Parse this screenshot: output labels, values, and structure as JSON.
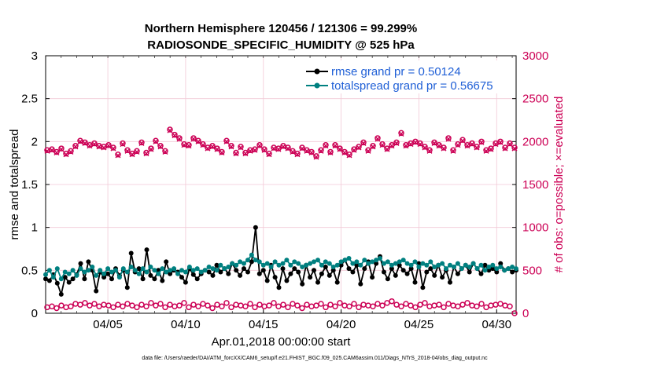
{
  "chart_data": {
    "type": "line",
    "title_line1": "Northern Hemisphere 120456 / 121306 = 99.299%",
    "title_line2": "RADIOSONDE_SPECIFIC_HUMIDITY @ 525 hPa",
    "ylabel": "rmse and totalspread",
    "y2label": "# of obs: o=possible; ×=evaluated",
    "xlabel": "Apr.01,2018 00:00:00 start",
    "footer": "data file: /Users/raeder/DAI/ATM_forcXX/CAM6_setup/f.e21.FHIST_BGC.f09_025.CAM6assim.011/Diags_NTrS_2018-04/obs_diag_output.nc",
    "ylim": [
      0,
      3
    ],
    "y2lim": [
      0,
      3000
    ],
    "xlim": [
      1.0,
      31.25
    ],
    "yticks": [
      "0",
      "0.5",
      "1",
      "1.5",
      "2",
      "2.5",
      "3"
    ],
    "y2ticks": [
      "0",
      "500",
      "1000",
      "1500",
      "2000",
      "2500",
      "3000"
    ],
    "xticks": [
      {
        "x": 5,
        "label": "04/05"
      },
      {
        "x": 10,
        "label": "04/10"
      },
      {
        "x": 15,
        "label": "04/15"
      },
      {
        "x": 20,
        "label": "04/20"
      },
      {
        "x": 25,
        "label": "04/25"
      },
      {
        "x": 30,
        "label": "04/30"
      }
    ],
    "x_start": 1.0,
    "x_step": 0.25,
    "series": [
      {
        "name": "rmse",
        "legend": "rmse grand pr = 0.50124",
        "color": "#000000",
        "axis": "left",
        "values": [
          0.4,
          0.38,
          0.45,
          0.35,
          0.22,
          0.42,
          0.36,
          0.4,
          0.45,
          0.58,
          0.4,
          0.6,
          0.5,
          0.26,
          0.48,
          0.42,
          0.46,
          0.4,
          0.52,
          0.44,
          0.5,
          0.3,
          0.7,
          0.48,
          0.52,
          0.4,
          0.74,
          0.44,
          0.4,
          0.5,
          0.38,
          0.6,
          0.46,
          0.5,
          0.48,
          0.42,
          0.36,
          0.52,
          0.45,
          0.4,
          0.46,
          0.5,
          0.48,
          0.44,
          0.56,
          0.48,
          0.52,
          0.46,
          0.58,
          0.5,
          0.44,
          0.52,
          0.48,
          0.6,
          1.0,
          0.46,
          0.5,
          0.38,
          0.56,
          0.42,
          0.3,
          0.52,
          0.38,
          0.46,
          0.52,
          0.48,
          0.34,
          0.56,
          0.42,
          0.5,
          0.36,
          0.46,
          0.54,
          0.44,
          0.5,
          0.36,
          0.56,
          0.62,
          0.52,
          0.48,
          0.56,
          0.34,
          0.52,
          0.6,
          0.42,
          0.58,
          0.66,
          0.48,
          0.4,
          0.52,
          0.44,
          0.56,
          0.5,
          0.46,
          0.52,
          0.36,
          0.58,
          0.3,
          0.48,
          0.52,
          0.44,
          0.56,
          0.42,
          0.5,
          0.36,
          0.54,
          0.46,
          0.52,
          0.56,
          0.48,
          0.58,
          0.52,
          0.46,
          0.56,
          0.5,
          0.52,
          0.48,
          0.58,
          0.5,
          0.52,
          0.48,
          0.5
        ]
      },
      {
        "name": "totalspread",
        "legend": "totalspread grand pr = 0.56675",
        "color": "#008080",
        "axis": "left",
        "values": [
          0.45,
          0.5,
          0.42,
          0.52,
          0.4,
          0.48,
          0.46,
          0.5,
          0.44,
          0.52,
          0.48,
          0.5,
          0.54,
          0.44,
          0.5,
          0.46,
          0.52,
          0.48,
          0.5,
          0.42,
          0.52,
          0.48,
          0.54,
          0.5,
          0.46,
          0.52,
          0.48,
          0.54,
          0.5,
          0.46,
          0.52,
          0.48,
          0.5,
          0.52,
          0.46,
          0.5,
          0.48,
          0.54,
          0.5,
          0.52,
          0.48,
          0.5,
          0.54,
          0.52,
          0.5,
          0.56,
          0.52,
          0.54,
          0.58,
          0.56,
          0.6,
          0.58,
          0.62,
          0.68,
          0.62,
          0.6,
          0.56,
          0.58,
          0.54,
          0.6,
          0.56,
          0.58,
          0.62,
          0.56,
          0.6,
          0.58,
          0.54,
          0.56,
          0.58,
          0.6,
          0.62,
          0.56,
          0.6,
          0.58,
          0.54,
          0.56,
          0.6,
          0.62,
          0.64,
          0.58,
          0.6,
          0.56,
          0.62,
          0.58,
          0.6,
          0.62,
          0.64,
          0.58,
          0.6,
          0.56,
          0.58,
          0.6,
          0.62,
          0.58,
          0.56,
          0.6,
          0.54,
          0.58,
          0.56,
          0.6,
          0.54,
          0.56,
          0.58,
          0.52,
          0.56,
          0.54,
          0.58,
          0.52,
          0.56,
          0.54,
          0.58,
          0.52,
          0.56,
          0.5,
          0.54,
          0.56,
          0.52,
          0.54,
          0.5,
          0.52,
          0.54,
          0.52
        ]
      },
      {
        "name": "possible",
        "color": "#cc0055",
        "axis": "right",
        "values": [
          1900,
          1910,
          1880,
          1920,
          1860,
          1890,
          1950,
          2010,
          1990,
          1960,
          1980,
          1950,
          1940,
          1960,
          1930,
          1850,
          1980,
          1900,
          1860,
          1890,
          1990,
          1870,
          1920,
          2010,
          1950,
          1890,
          2140,
          2080,
          2040,
          1970,
          1960,
          2040,
          2010,
          1970,
          1930,
          1950,
          1920,
          1880,
          2010,
          1950,
          1870,
          1940,
          1870,
          1900,
          1910,
          1960,
          1910,
          1860,
          1930,
          1920,
          1950,
          1930,
          1890,
          1860,
          1930,
          1900,
          1880,
          1830,
          1900,
          1960,
          1880,
          1960,
          1920,
          1880,
          1850,
          1910,
          1940,
          1990,
          1900,
          1950,
          2040,
          1970,
          1920,
          1960,
          1990,
          2100,
          1960,
          1980,
          2000,
          1980,
          1940,
          1900,
          1990,
          1960,
          1930,
          2040,
          1900,
          1970,
          2020,
          1960,
          1980,
          1940,
          2000,
          1900,
          1920,
          1980,
          2000,
          1930,
          1980,
          1930
        ]
      },
      {
        "name": "evaluated",
        "color": "#cc0055",
        "axis": "right",
        "values": [
          1890,
          1900,
          1870,
          1910,
          1850,
          1880,
          1940,
          2000,
          1980,
          1950,
          1970,
          1940,
          1930,
          1950,
          1920,
          1840,
          1970,
          1890,
          1850,
          1880,
          1980,
          1860,
          1910,
          2000,
          1940,
          1880,
          2130,
          2070,
          2030,
          1960,
          1950,
          2030,
          2000,
          1960,
          1920,
          1940,
          1910,
          1870,
          2000,
          1940,
          1860,
          1930,
          1860,
          1890,
          1900,
          1950,
          1900,
          1850,
          1920,
          1910,
          1940,
          1920,
          1880,
          1850,
          1920,
          1890,
          1870,
          1820,
          1890,
          1950,
          1870,
          1950,
          1910,
          1870,
          1840,
          1900,
          1930,
          1980,
          1890,
          1940,
          2030,
          1960,
          1910,
          1950,
          1980,
          2090,
          1950,
          1970,
          1990,
          1970,
          1930,
          1890,
          1980,
          1950,
          1920,
          2030,
          1890,
          1960,
          2010,
          1950,
          1970,
          1930,
          1990,
          1890,
          1910,
          1970,
          1990,
          1920,
          1970,
          1920
        ]
      },
      {
        "name": "possible_low",
        "color": "#cc0055",
        "axis": "right",
        "values": [
          70,
          80,
          60,
          90,
          70,
          80,
          110,
          100,
          120,
          90,
          110,
          80,
          100,
          90,
          70,
          100,
          80,
          110,
          90,
          70,
          100,
          80,
          120,
          90,
          110,
          70,
          100,
          80,
          90,
          120,
          70,
          100,
          80,
          110,
          90,
          60,
          100,
          80,
          120,
          70,
          100,
          90,
          80,
          110,
          70,
          100,
          80,
          90,
          120,
          80,
          100,
          70,
          110,
          90,
          60,
          100,
          80,
          90,
          110,
          70,
          100,
          80,
          120,
          90,
          80,
          110,
          70,
          100,
          90,
          80,
          110,
          90,
          120,
          140,
          100,
          80,
          110,
          90,
          70,
          100,
          120,
          80,
          90,
          100,
          70,
          110,
          90,
          80,
          100,
          120,
          90,
          80,
          110,
          70,
          90,
          100,
          110,
          90,
          80,
          0
        ]
      }
    ]
  }
}
